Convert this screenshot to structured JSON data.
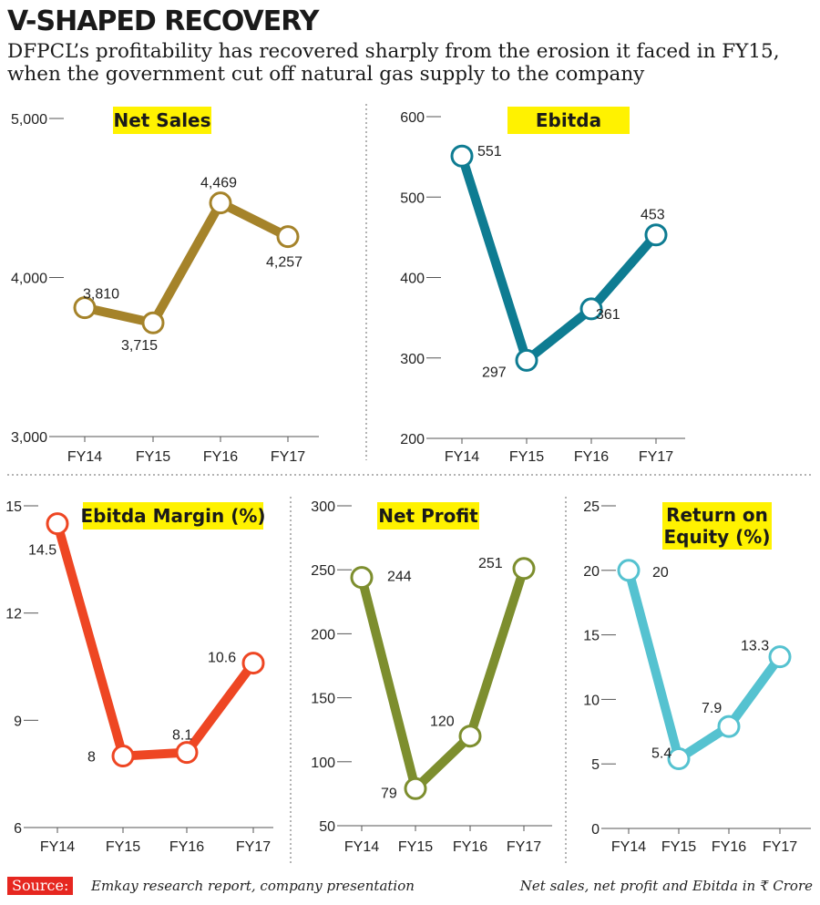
{
  "header": {
    "title": "V-SHAPED RECOVERY",
    "subtitle": "DFPCL’s profitability has recovered sharply from the erosion it faced in FY15, when the government cut off natural gas supply to the company"
  },
  "footer": {
    "source_label": "Source:",
    "source_text": "Emkay research report, company presentation",
    "unit_note": "Net sales, net profit and Ebitda in ₹ Crore"
  },
  "colors": {
    "highlight": "#fff200",
    "net_sales": "#a5832a",
    "ebitda": "#0e7c92",
    "ebitda_margin": "#ee4623",
    "net_profit": "#7d8e2e",
    "roe": "#55c2d0",
    "source_box": "#e62720"
  },
  "chart_data": [
    {
      "type": "line",
      "title": "Net Sales",
      "categories": [
        "FY14",
        "FY15",
        "FY16",
        "FY17"
      ],
      "values": [
        3810,
        3715,
        4469,
        4257
      ],
      "value_labels": [
        "3,810",
        "3,715",
        "4,469",
        "4,257"
      ],
      "ylim": [
        3000,
        5000
      ],
      "yticks": [
        3000,
        4000,
        5000
      ],
      "ytick_labels": [
        "3,000",
        "4,000",
        "5,000"
      ],
      "color": "#a5832a"
    },
    {
      "type": "line",
      "title": "Ebitda",
      "categories": [
        "FY14",
        "FY15",
        "FY16",
        "FY17"
      ],
      "values": [
        551,
        297,
        361,
        453
      ],
      "value_labels": [
        "551",
        "297",
        "361",
        "453"
      ],
      "ylim": [
        200,
        600
      ],
      "yticks": [
        200,
        300,
        400,
        500,
        600
      ],
      "ytick_labels": [
        "200",
        "300",
        "400",
        "500",
        "600"
      ],
      "color": "#0e7c92"
    },
    {
      "type": "line",
      "title": "Ebitda Margin (%)",
      "categories": [
        "FY14",
        "FY15",
        "FY16",
        "FY17"
      ],
      "values": [
        14.5,
        8,
        8.1,
        10.6
      ],
      "value_labels": [
        "14.5",
        "8",
        "8.1",
        "10.6"
      ],
      "ylim": [
        6,
        15
      ],
      "yticks": [
        6,
        9,
        12,
        15
      ],
      "ytick_labels": [
        "6",
        "9",
        "12",
        "15"
      ],
      "color": "#ee4623"
    },
    {
      "type": "line",
      "title": "Net Profit",
      "categories": [
        "FY14",
        "FY15",
        "FY16",
        "FY17"
      ],
      "values": [
        244,
        79,
        120,
        251
      ],
      "value_labels": [
        "244",
        "79",
        "120",
        "251"
      ],
      "ylim": [
        50,
        300
      ],
      "yticks": [
        50,
        100,
        150,
        200,
        250,
        300
      ],
      "ytick_labels": [
        "50",
        "100",
        "150",
        "200",
        "250",
        "300"
      ],
      "color": "#7d8e2e"
    },
    {
      "type": "line",
      "title": "Return on Equity (%)",
      "title_lines": [
        "Return on",
        "Equity (%)"
      ],
      "categories": [
        "FY14",
        "FY15",
        "FY16",
        "FY17"
      ],
      "values": [
        20,
        5.4,
        7.9,
        13.3
      ],
      "value_labels": [
        "20",
        "5.4",
        "7.9",
        "13.3"
      ],
      "ylim": [
        0,
        25
      ],
      "yticks": [
        0,
        5,
        10,
        15,
        20,
        25
      ],
      "ytick_labels": [
        "0",
        "5",
        "10",
        "15",
        "20",
        "25"
      ],
      "color": "#55c2d0"
    }
  ]
}
